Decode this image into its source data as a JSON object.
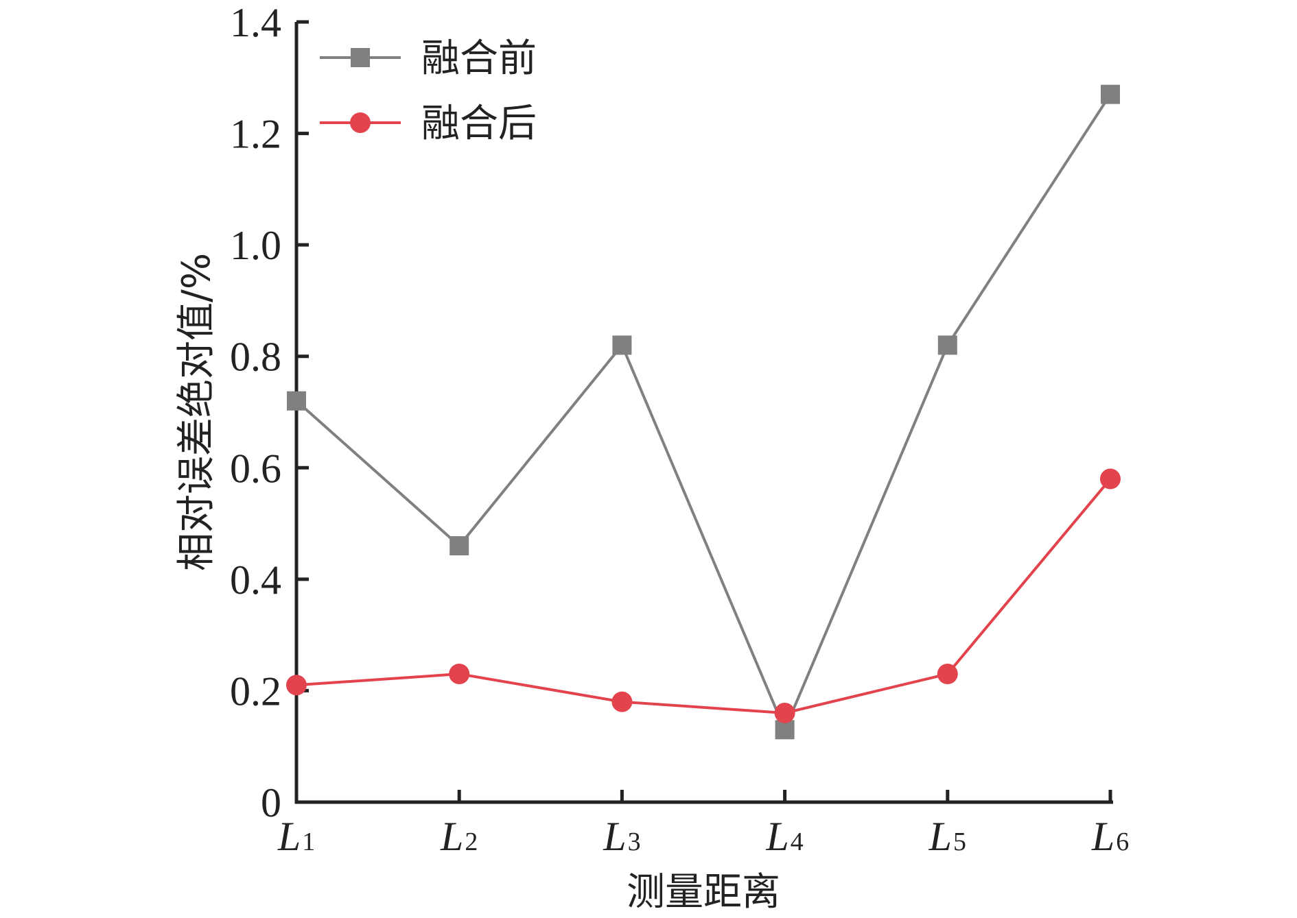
{
  "chart_data": {
    "type": "line",
    "xlabel": "测量距离",
    "ylabel": "相对误差绝对值/%",
    "categories": [
      {
        "main": "L",
        "sub": "1"
      },
      {
        "main": "L",
        "sub": "2"
      },
      {
        "main": "L",
        "sub": "3"
      },
      {
        "main": "L",
        "sub": "4"
      },
      {
        "main": "L",
        "sub": "5"
      },
      {
        "main": "L",
        "sub": "6"
      }
    ],
    "ylim": [
      0,
      1.4
    ],
    "yticks": [
      0,
      0.2,
      0.4,
      0.6,
      0.8,
      1.0,
      1.2,
      1.4
    ],
    "ytick_labels": [
      "0",
      "0.2",
      "0.4",
      "0.6",
      "0.8",
      "1.0",
      "1.2",
      "1.4"
    ],
    "grid": false,
    "legend_position": "top-left",
    "series": [
      {
        "name": "融合前",
        "marker": "square",
        "color": "#808080",
        "values": [
          0.72,
          0.46,
          0.82,
          0.13,
          0.82,
          1.27
        ]
      },
      {
        "name": "融合后",
        "marker": "circle",
        "color": "#e2434d",
        "values": [
          0.21,
          0.23,
          0.18,
          0.16,
          0.23,
          0.58
        ]
      }
    ]
  }
}
